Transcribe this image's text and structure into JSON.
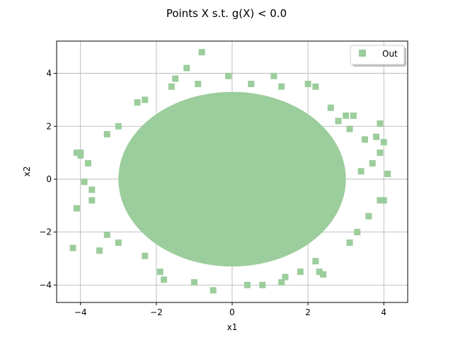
{
  "chart_data": {
    "type": "scatter",
    "title": "Points X s.t. g(X) < 0.0",
    "xlabel": "x1",
    "ylabel": "x2",
    "xlim": [
      -4.63,
      4.63
    ],
    "ylim": [
      -4.66,
      5.22
    ],
    "xticks": [
      -4,
      -2,
      0,
      2,
      4
    ],
    "yticks": [
      -4,
      -2,
      0,
      2,
      4
    ],
    "grid": true,
    "legend": {
      "location": "upper-right",
      "entries": [
        {
          "label": "Out",
          "color": "#9ccd9c",
          "marker": "square"
        }
      ]
    },
    "series": [
      {
        "name": "Out",
        "color": "#9ccd9c",
        "marker": "square",
        "dense_core": {
          "center": [
            0.0,
            0.0
          ],
          "radius_x": 3.0,
          "radius_y": 3.3
        },
        "points": [
          [
            -0.8,
            4.8
          ],
          [
            -1.2,
            4.2
          ],
          [
            -0.1,
            3.9
          ],
          [
            1.1,
            3.9
          ],
          [
            2.0,
            3.6
          ],
          [
            2.2,
            3.5
          ],
          [
            -4.1,
            1.0
          ],
          [
            -4.0,
            1.0
          ],
          [
            -4.2,
            -2.6
          ],
          [
            -4.1,
            -1.1
          ],
          [
            -3.5,
            -2.7
          ],
          [
            -3.3,
            -2.1
          ],
          [
            -3.0,
            -2.4
          ],
          [
            -2.3,
            -2.9
          ],
          [
            -1.9,
            -3.5
          ],
          [
            -1.8,
            -3.8
          ],
          [
            -1.0,
            -3.9
          ],
          [
            -0.5,
            -4.2
          ],
          [
            0.4,
            -4.0
          ],
          [
            0.8,
            -4.0
          ],
          [
            1.3,
            -3.9
          ],
          [
            1.4,
            -3.7
          ],
          [
            1.8,
            -3.5
          ],
          [
            2.3,
            -3.5
          ],
          [
            2.4,
            -3.6
          ],
          [
            2.2,
            -3.1
          ],
          [
            3.1,
            -2.4
          ],
          [
            3.3,
            -2.0
          ],
          [
            3.6,
            -1.4
          ],
          [
            3.9,
            -0.8
          ],
          [
            4.0,
            -0.8
          ],
          [
            4.1,
            0.2
          ],
          [
            3.9,
            1.0
          ],
          [
            4.0,
            1.4
          ],
          [
            3.9,
            2.1
          ],
          [
            3.5,
            1.5
          ],
          [
            3.8,
            1.6
          ],
          [
            3.2,
            2.4
          ],
          [
            3.0,
            2.4
          ],
          [
            3.4,
            0.3
          ],
          [
            3.7,
            0.6
          ],
          [
            -3.7,
            -0.8
          ],
          [
            -3.7,
            -0.4
          ],
          [
            -3.9,
            -0.1
          ],
          [
            -4.0,
            0.9
          ],
          [
            -3.8,
            0.6
          ],
          [
            -3.3,
            1.7
          ],
          [
            -3.0,
            2.0
          ],
          [
            -2.5,
            2.9
          ],
          [
            -2.3,
            3.0
          ],
          [
            -1.6,
            3.5
          ],
          [
            -1.5,
            3.8
          ],
          [
            -0.9,
            3.6
          ],
          [
            0.5,
            3.6
          ],
          [
            1.3,
            3.5
          ],
          [
            2.6,
            2.7
          ],
          [
            3.1,
            1.9
          ],
          [
            2.8,
            2.2
          ]
        ]
      }
    ]
  }
}
